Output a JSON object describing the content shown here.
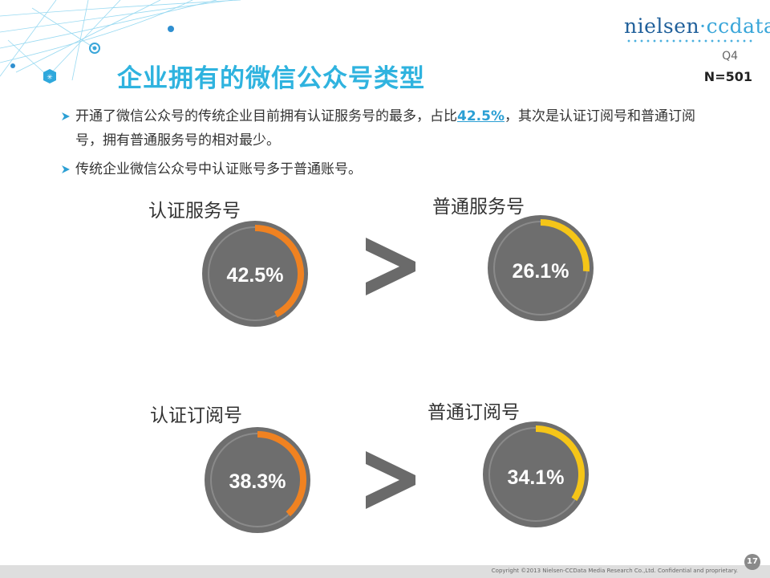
{
  "header": {
    "logo_part1": "nielsen",
    "logo_part2": "·ccdata",
    "quarter": "Q4",
    "sample_size": "N=501"
  },
  "title": "企业拥有的微信公众号类型",
  "bullets": [
    {
      "before": "开通了微信公众号的传统企业目前拥有认证服务号的最多，占比",
      "highlight": "42.5%",
      "after": "，其次是认证订阅号和普通订阅号，拥有普通服务号的相对最少。"
    },
    {
      "text": "传统企业微信公众号中认证账号多于普通账号。"
    }
  ],
  "comparison_symbol": ">",
  "chart_data": [
    {
      "type": "pie",
      "label": "认证服务号",
      "value": 42.5,
      "value_label": "42.5%",
      "color": "#f08221"
    },
    {
      "type": "pie",
      "label": "普通服务号",
      "value": 26.1,
      "value_label": "26.1%",
      "color": "#f5c518"
    },
    {
      "type": "pie",
      "label": "认证订阅号",
      "value": 38.3,
      "value_label": "38.3%",
      "color": "#f08221"
    },
    {
      "type": "pie",
      "label": "普通订阅号",
      "value": 34.1,
      "value_label": "34.1%",
      "color": "#f5c518"
    }
  ],
  "footer": {
    "copyright": "Copyright ©2013 Nielsen-CCData Media Research Co.,Ltd. Confidential and proprietary.",
    "page": "17"
  }
}
